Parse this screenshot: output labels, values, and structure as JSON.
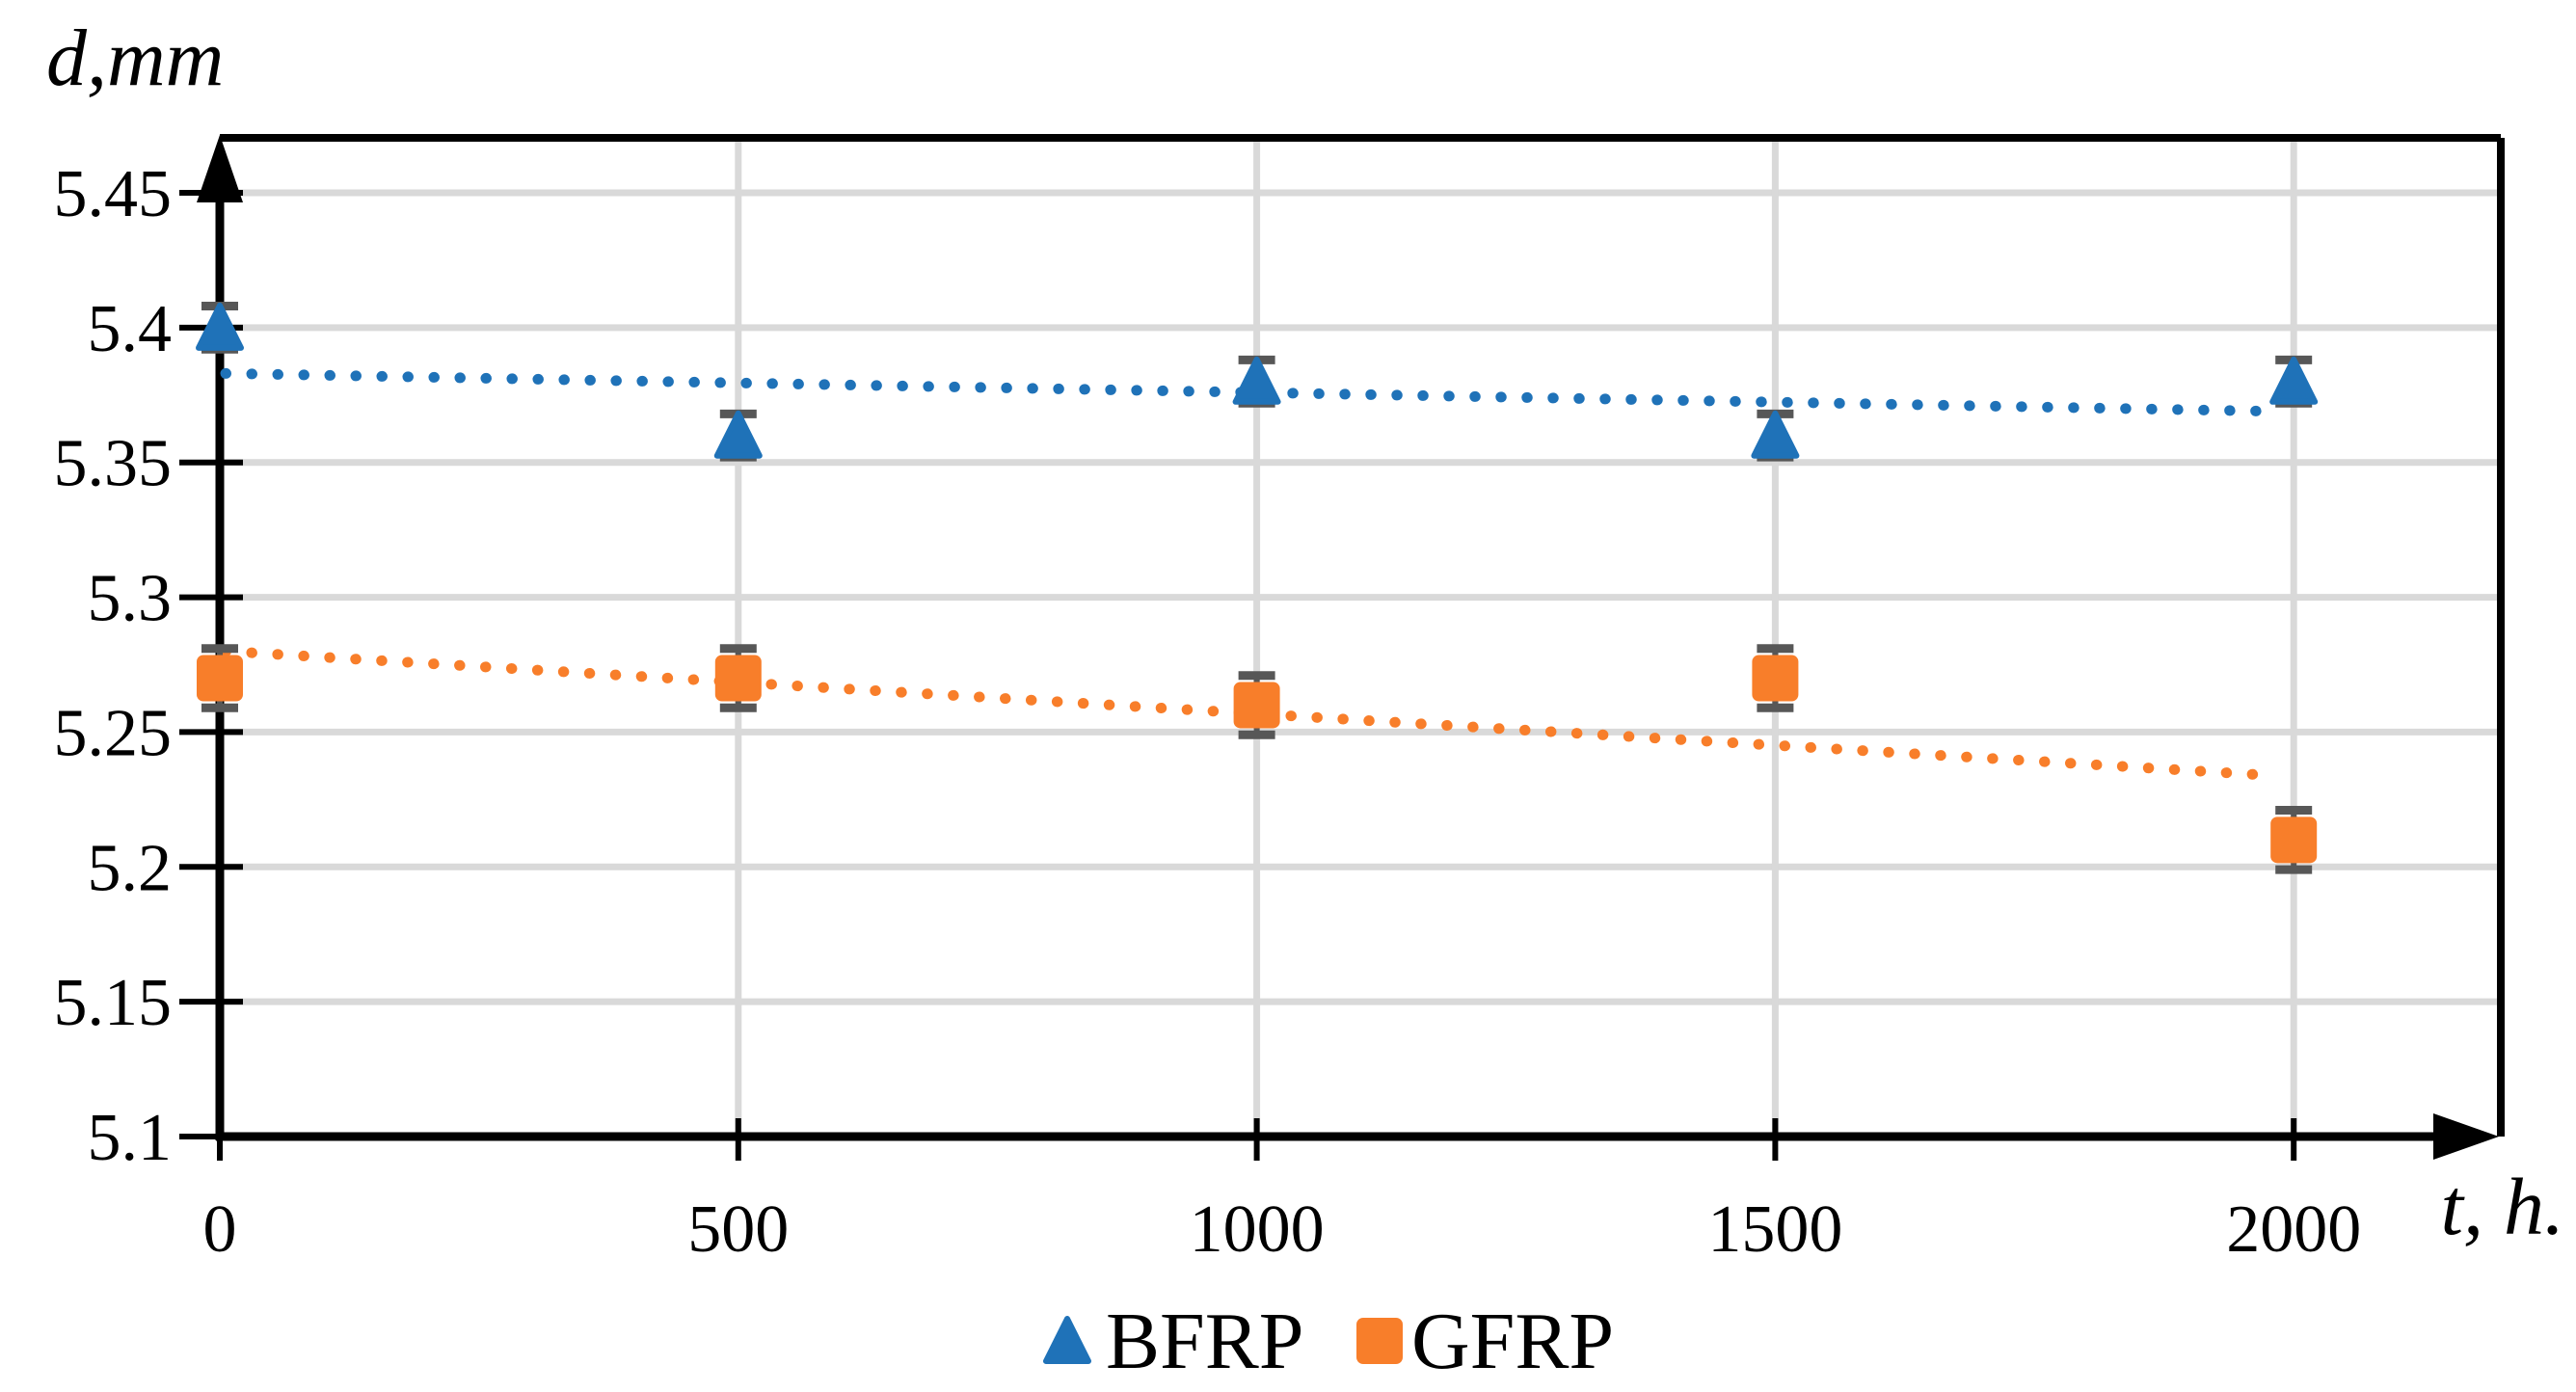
{
  "chart_data": {
    "type": "scatter",
    "title": "",
    "x_axis": {
      "label": "t, h.",
      "ticks": [
        0,
        500,
        1000,
        1500,
        2000
      ],
      "tick_labels": [
        "0",
        "500",
        "1000",
        "1500",
        "2000"
      ],
      "min": 0,
      "max": 2200
    },
    "y_axis": {
      "label": "d,mm",
      "ticks": [
        5.45,
        5.4,
        5.35,
        5.3,
        5.25,
        5.2,
        5.15,
        5.1
      ],
      "tick_labels": [
        "5.45",
        "5.4",
        "5.35",
        "5.3",
        "5.25",
        "5.2",
        "5.15",
        "5.1"
      ],
      "min": 5.1,
      "max": 5.45
    },
    "grid": true,
    "legend": {
      "position": "bottom-center",
      "entries": [
        "BFRP",
        "GFRP"
      ]
    },
    "series": [
      {
        "name": "BFRP",
        "marker": "triangle",
        "color": "#1F72B8",
        "x": [
          0,
          500,
          1000,
          1500,
          2000
        ],
        "y": [
          5.4,
          5.36,
          5.38,
          5.36,
          5.38
        ],
        "error": 0.008,
        "trendline": {
          "style": "dotted",
          "start_y": 5.383,
          "end_y": 5.369
        }
      },
      {
        "name": "GFRP",
        "marker": "square",
        "color": "#F87E2A",
        "x": [
          0,
          500,
          1000,
          1500,
          2000
        ],
        "y": [
          5.27,
          5.27,
          5.26,
          5.27,
          5.21
        ],
        "error": 0.011,
        "trendline": {
          "style": "dotted",
          "start_y": 5.28,
          "end_y": 5.234
        }
      }
    ],
    "colors": {
      "gridline": "#D9D9D9",
      "axis": "#000000",
      "error_bar": "#575757",
      "background": "#FFFFFF"
    }
  }
}
